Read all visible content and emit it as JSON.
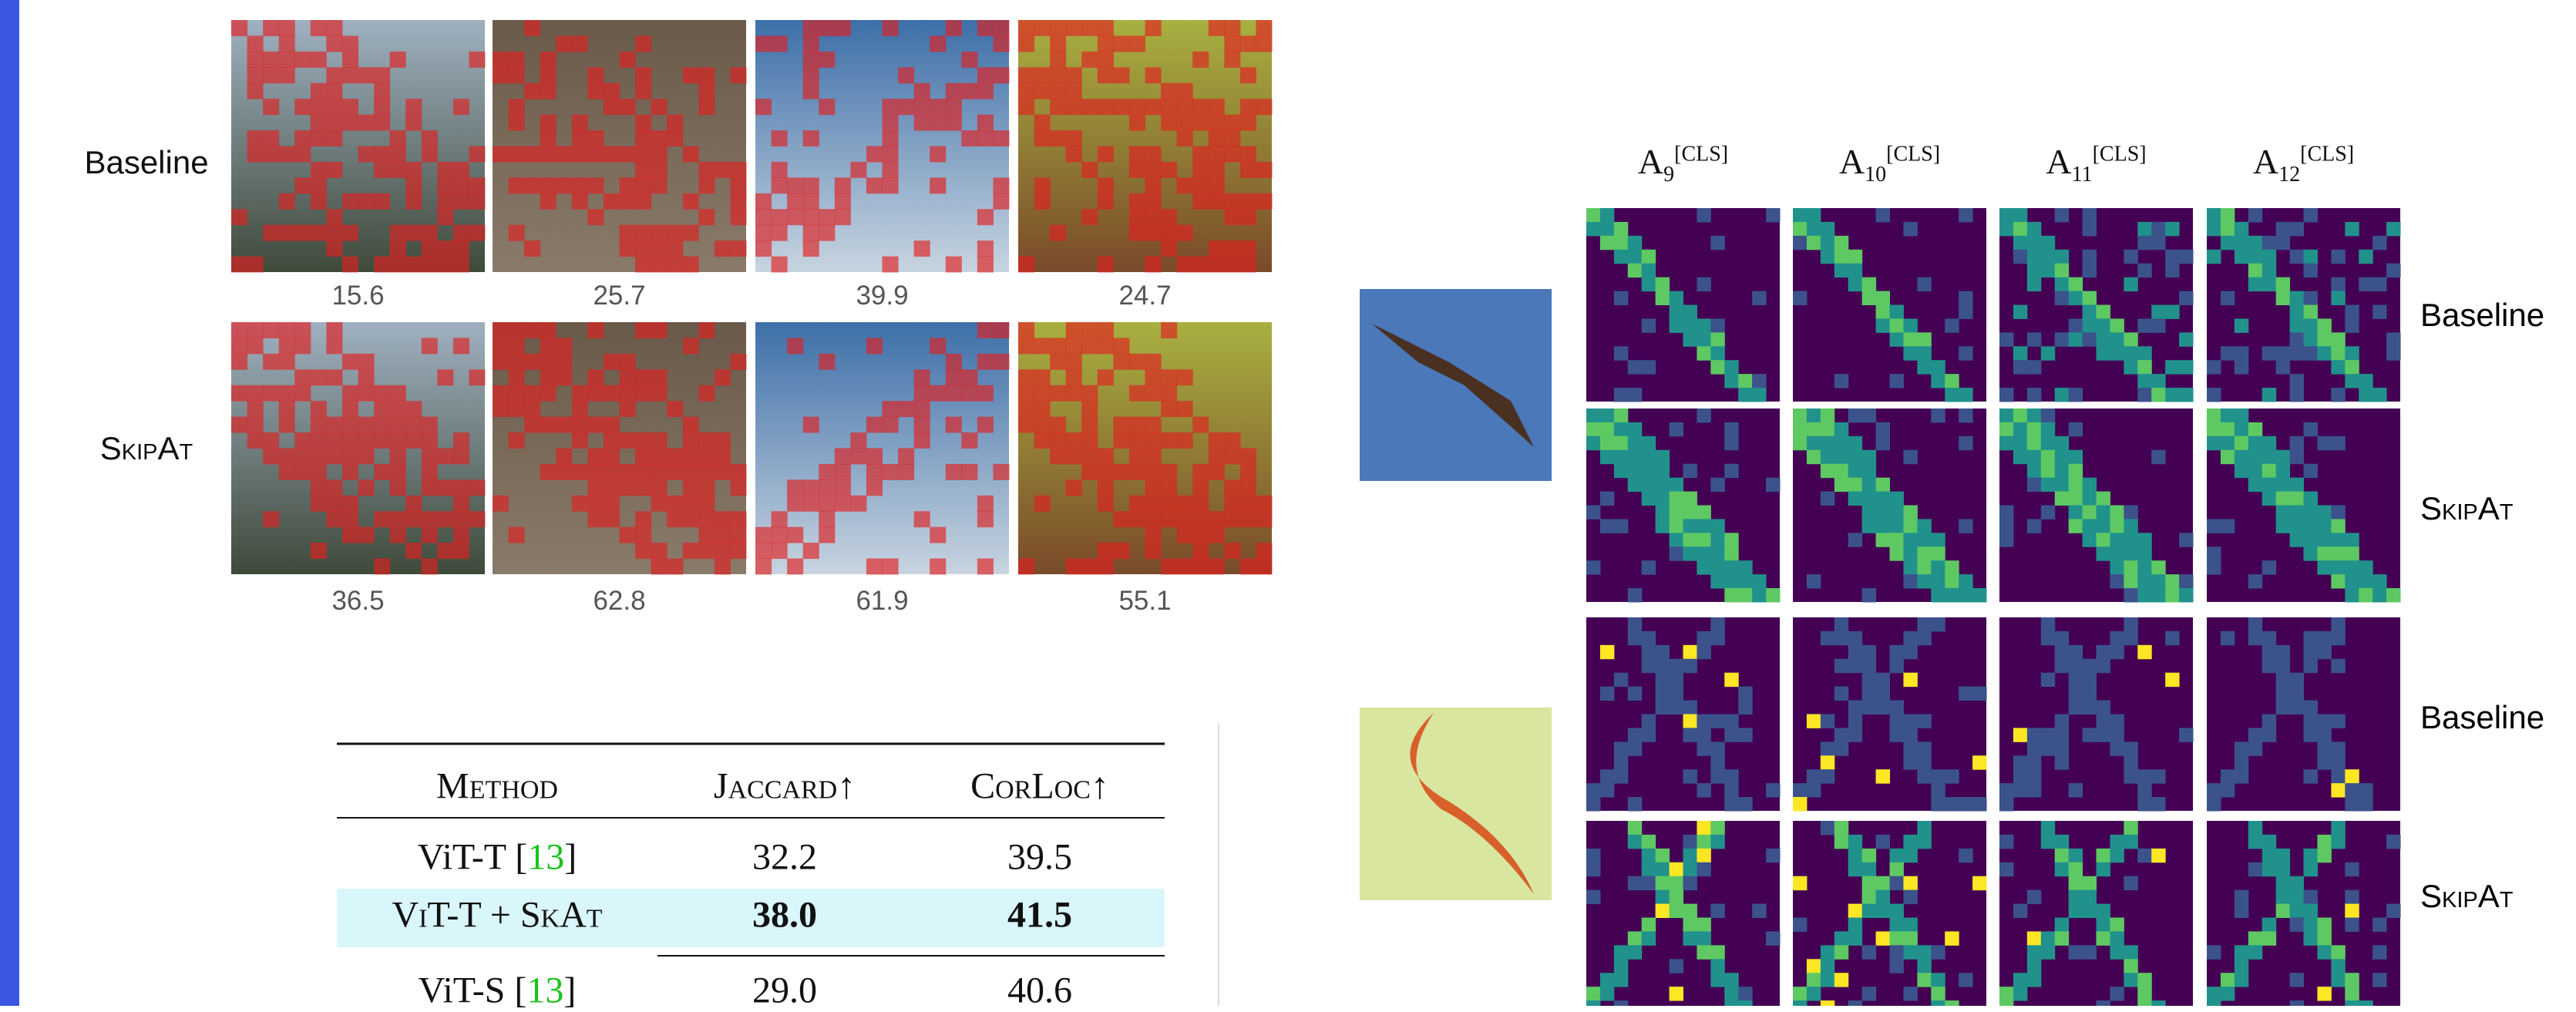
{
  "left_panel": {
    "row_labels": [
      "Baseline",
      "SkipAt"
    ],
    "scores": [
      [
        "15.6",
        "25.7",
        "39.9",
        "24.7"
      ],
      [
        "36.5",
        "62.8",
        "61.9",
        "55.1"
      ]
    ]
  },
  "table": {
    "headers": [
      "Method",
      "Jaccard↑",
      "CorLoc↑"
    ],
    "rows": [
      {
        "method": [
          "ViT-T [",
          "13",
          "]"
        ],
        "jaccard": "32.2",
        "corloc": "39.5"
      },
      {
        "method": [
          "ViT-T + SkAt"
        ],
        "jaccard": "38.0",
        "corloc": "41.5",
        "highlight": true
      },
      {
        "method": [
          "ViT-S [",
          "13",
          "]"
        ],
        "jaccard": "29.0",
        "corloc": "40.6"
      }
    ]
  },
  "right_panel": {
    "column_headers": [
      {
        "base": "A",
        "sub": "9",
        "sup": "[CLS]"
      },
      {
        "base": "A",
        "sub": "10",
        "sup": "[CLS]"
      },
      {
        "base": "A",
        "sub": "11",
        "sup": "[CLS]"
      },
      {
        "base": "A",
        "sub": "12",
        "sup": "[CLS]"
      }
    ],
    "row_labels": [
      "Baseline",
      "SkipAt",
      "Baseline",
      "SkipAt"
    ]
  }
}
